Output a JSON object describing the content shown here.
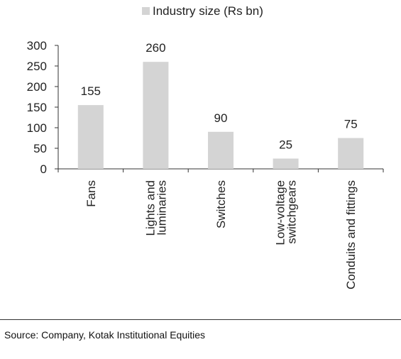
{
  "chart_data": {
    "type": "bar",
    "categories": [
      "Fans",
      "Lights and luminaries",
      "Switches",
      "Low-voltage switchgears",
      "Conduits and fittings"
    ],
    "category_lines": [
      [
        "Fans"
      ],
      [
        "Lights and",
        "luminaries"
      ],
      [
        "Switches"
      ],
      [
        "Low-voltage",
        "switchgears"
      ],
      [
        "Conduits and fittings"
      ]
    ],
    "series": [
      {
        "name": "Industry size (Rs bn)",
        "values": [
          155,
          260,
          90,
          25,
          75
        ],
        "color": "#d4d4d4"
      }
    ],
    "data_labels": [
      "155",
      "260",
      "90",
      "25",
      "75"
    ],
    "ylim": [
      0,
      300
    ],
    "yticks": [
      0,
      50,
      100,
      150,
      200,
      250,
      300
    ],
    "ytick_labels": [
      "0",
      "50",
      "100",
      "150",
      "200",
      "250",
      "300"
    ],
    "legend_position": "top",
    "grid": false
  },
  "source_text": "Source: Company, Kotak Institutional Equities"
}
